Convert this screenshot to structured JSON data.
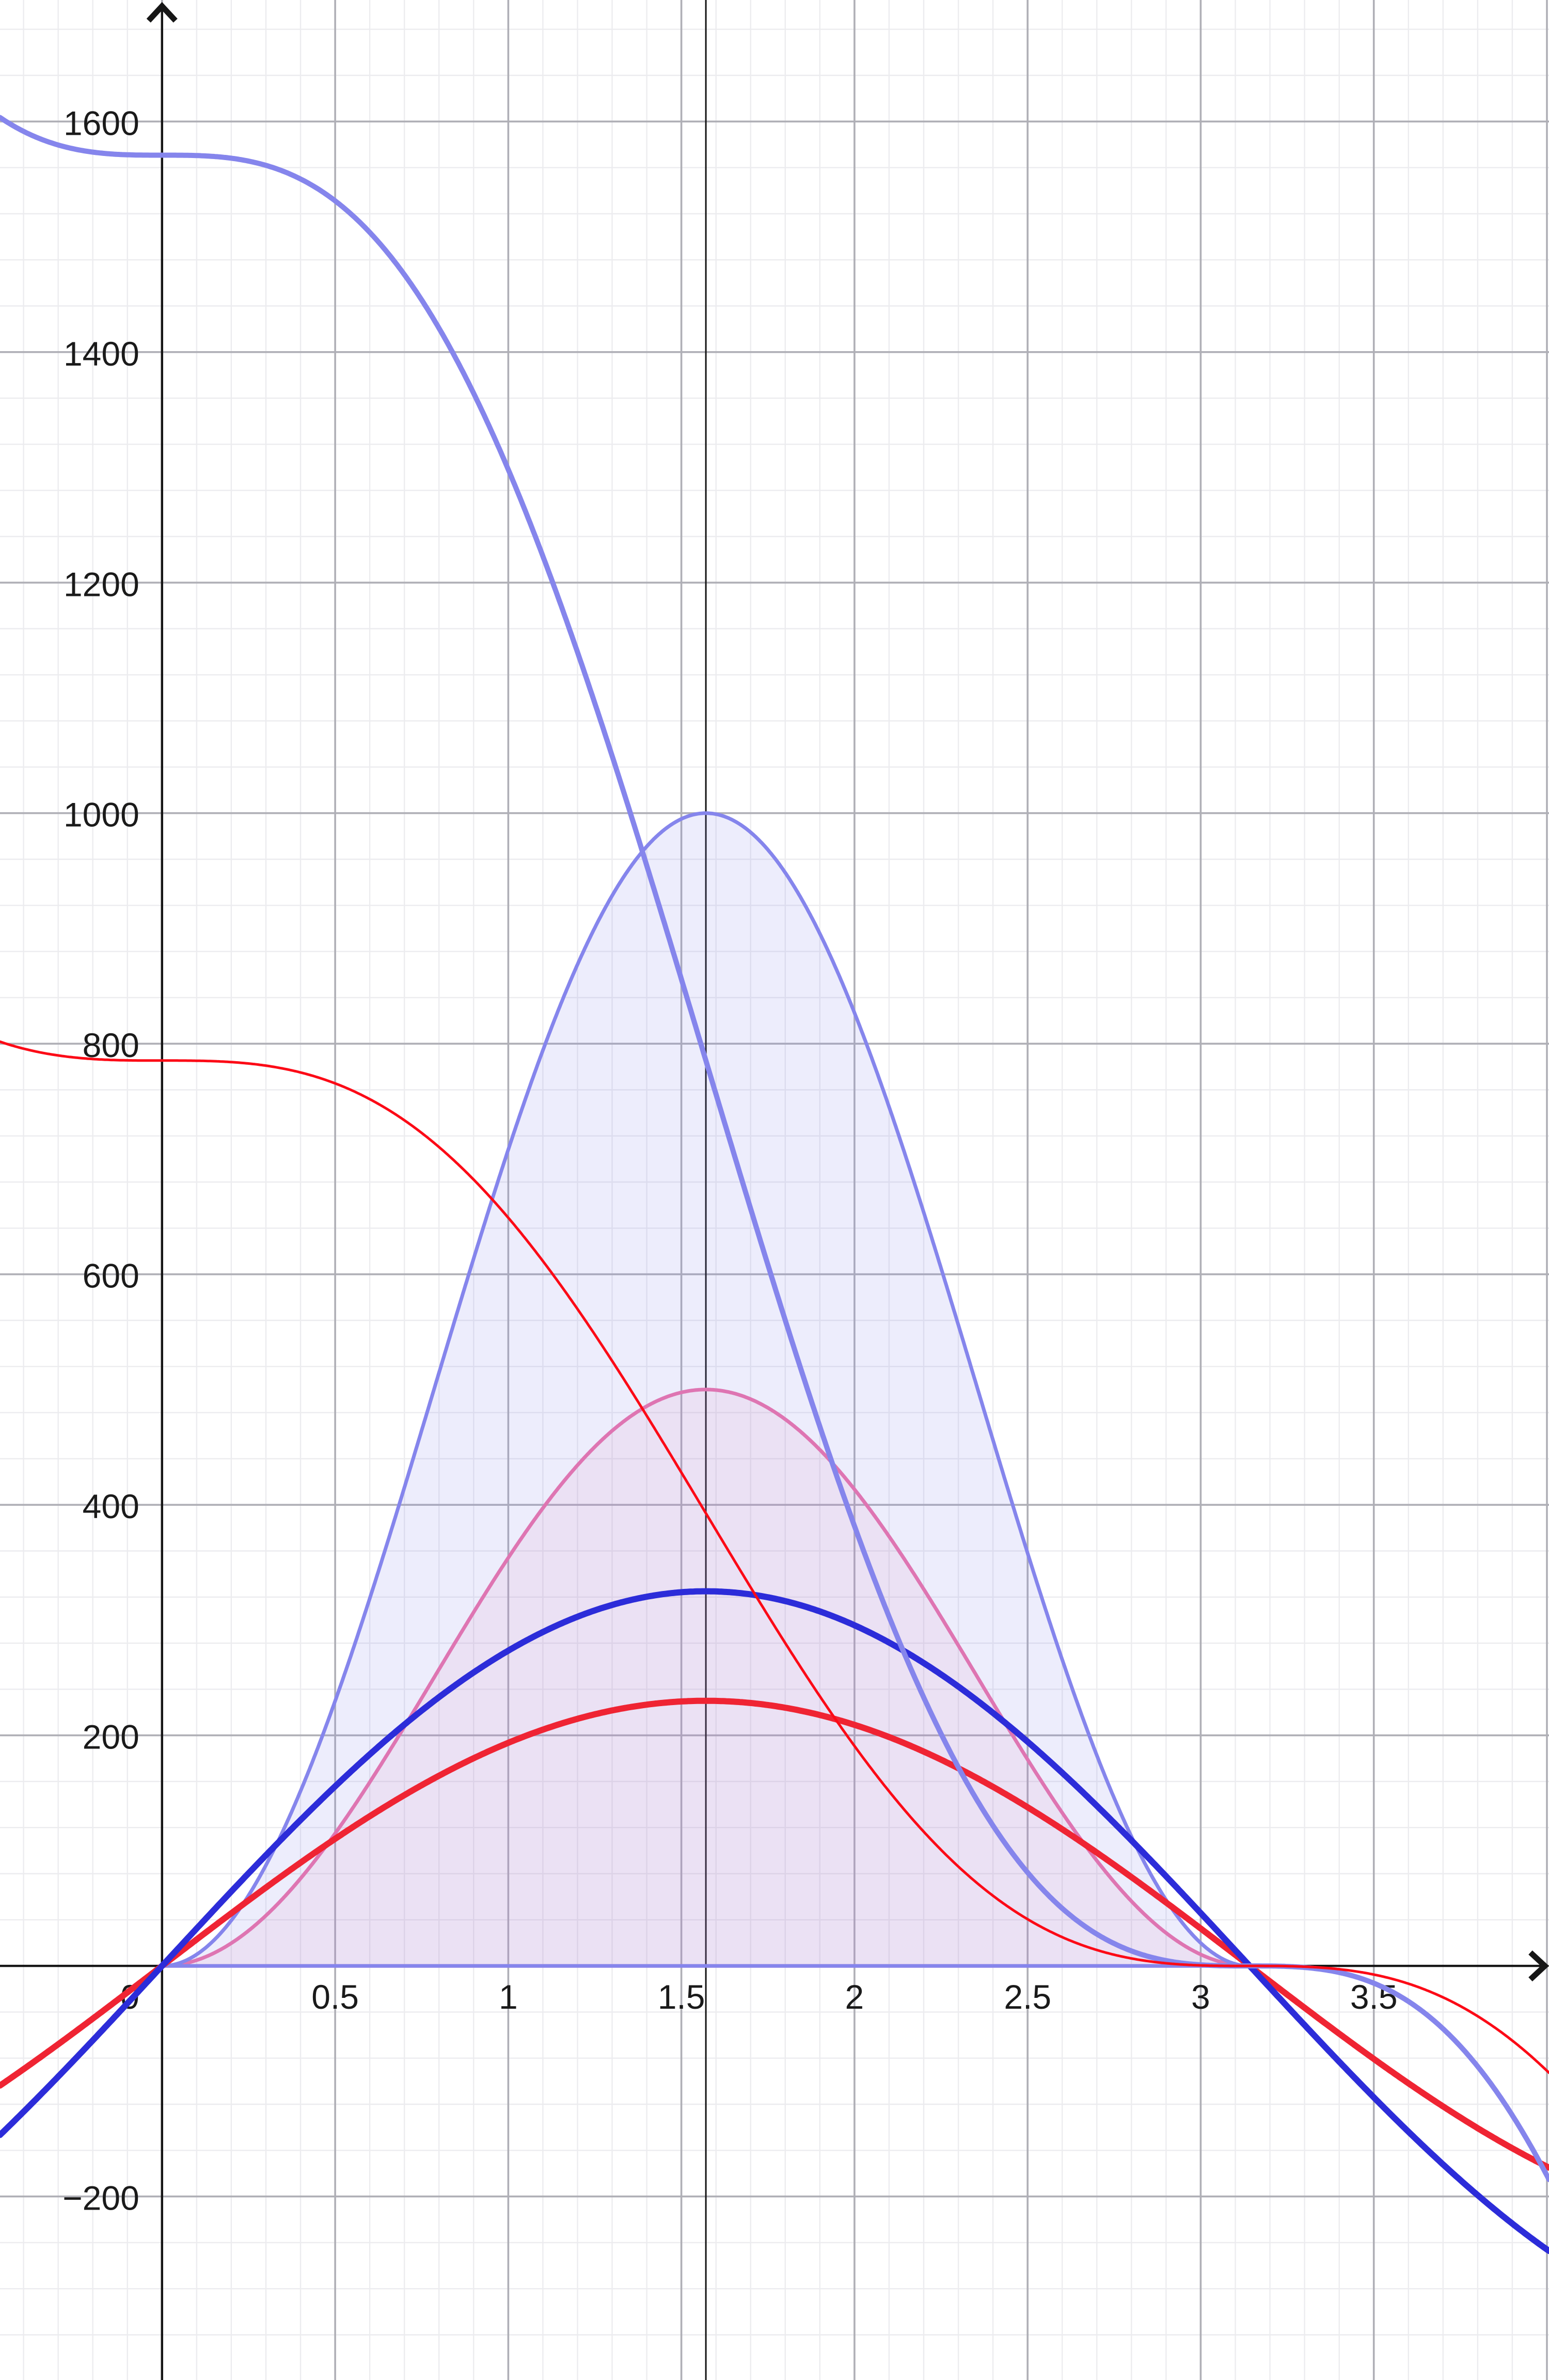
{
  "app": {
    "title": "function-graph-view"
  },
  "chart_data": {
    "type": "line",
    "title": "",
    "xlabel": "",
    "ylabel": "",
    "grid": {
      "on": true,
      "minor_color": "#ECECEF",
      "major_color": "#AFAFB6",
      "x_minor_step": 0.1,
      "x_major_step": 0.5,
      "y_minor_step": 40,
      "y_major_step": 200
    },
    "background": "#FFFFFF",
    "axis_color": "#161616",
    "label_color": "#1A1A1A",
    "label_font_px": 66,
    "x_axis": {
      "range": [
        -0.468,
        4.006
      ],
      "tick_labels": [
        {
          "value": 0.5,
          "label": "0.5"
        },
        {
          "value": 1,
          "label": "1"
        },
        {
          "value": 1.5,
          "label": "1.5"
        },
        {
          "value": 2,
          "label": "2"
        },
        {
          "value": 2.5,
          "label": "2.5"
        },
        {
          "value": 3,
          "label": "3"
        },
        {
          "value": 3.5,
          "label": "3.5"
        }
      ]
    },
    "y_axis": {
      "range": [
        -359.2,
        1705.4
      ],
      "tick_labels": [
        {
          "value": 1600,
          "label": "1600"
        },
        {
          "value": 1400,
          "label": "1400"
        },
        {
          "value": 1200,
          "label": "1200"
        },
        {
          "value": 1000,
          "label": "1000"
        },
        {
          "value": 800,
          "label": "800"
        },
        {
          "value": 600,
          "label": "600"
        },
        {
          "value": 400,
          "label": "400"
        },
        {
          "value": 200,
          "label": "200"
        },
        {
          "value": -200,
          "label": "−200"
        }
      ]
    },
    "origin_label": "0",
    "reference_line": {
      "x": 1.5708,
      "color": "#141414",
      "width": 3
    },
    "series": [
      {
        "id": "pink-sin2-region",
        "kind": "sin2_region",
        "amplitude": 500,
        "domain": [
          0,
          3.14159265
        ],
        "peak": {
          "x": 1.5708,
          "y": 500
        },
        "zeros": [
          0,
          3.1416
        ],
        "stroke": "#EE72A8",
        "stroke_width": 7,
        "fill": "rgba(238,114,168,0.10)"
      },
      {
        "id": "blue-sin2-region",
        "kind": "sin2_region",
        "amplitude": 1000,
        "domain": [
          0,
          3.14159265
        ],
        "peak": {
          "x": 1.5708,
          "y": 1000
        },
        "zeros": [
          0,
          3.1416
        ],
        "stroke": "#8585EC",
        "stroke_width": 7,
        "fill": "rgba(133,133,236,0.15)"
      },
      {
        "id": "thick-red-sine",
        "kind": "sine",
        "amplitude": 230,
        "domain": [
          -0.468,
          4.006
        ],
        "peak": {
          "x": 1.5708,
          "y": 230
        },
        "zeros": [
          0,
          3.1416
        ],
        "stroke": "#EF2433",
        "stroke_width": 12
      },
      {
        "id": "thick-blue-sine",
        "kind": "sine",
        "amplitude": 325,
        "domain": [
          -0.468,
          4.006
        ],
        "peak": {
          "x": 1.5708,
          "y": 325
        },
        "zeros": [
          0,
          3.1416
        ],
        "stroke": "#2C2CD9",
        "stroke_width": 12
      },
      {
        "id": "lightblue-integral-curve",
        "kind": "energy_integral",
        "amplitude": 1000,
        "domain": [
          -0.468,
          4.006
        ],
        "value_at_x0": 1570.8,
        "zero_at": 3.1416,
        "stroke": "#8585EC",
        "stroke_width": 10
      },
      {
        "id": "thin-red-integral-curve",
        "kind": "energy_integral",
        "amplitude": 500,
        "domain": [
          -0.468,
          4.006
        ],
        "value_at_x0": 785.4,
        "zero_at": 3.1416,
        "stroke": "#FC0A16",
        "stroke_width": 5
      }
    ]
  }
}
